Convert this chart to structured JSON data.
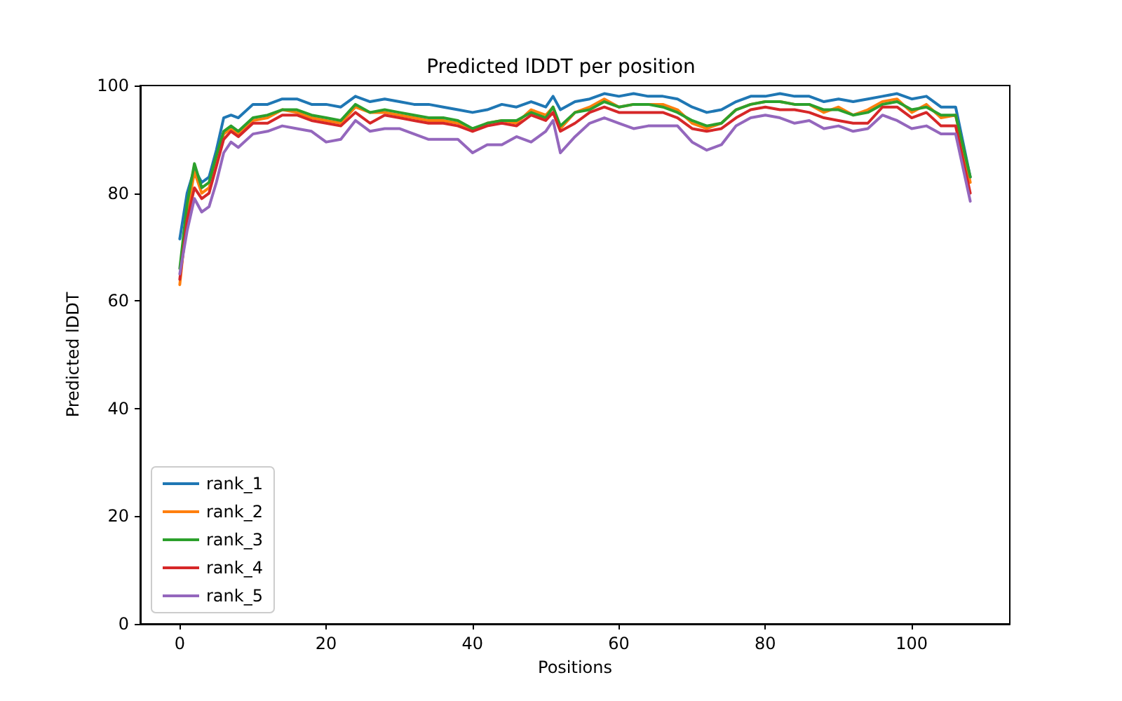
{
  "chart_data": {
    "type": "line",
    "title": "Predicted lDDT per position",
    "xlabel": "Positions",
    "ylabel": "Predicted lDDT",
    "x": [
      0,
      1,
      2,
      3,
      4,
      5,
      6,
      7,
      8,
      10,
      12,
      14,
      16,
      18,
      20,
      22,
      24,
      26,
      28,
      30,
      32,
      34,
      36,
      38,
      40,
      42,
      44,
      46,
      48,
      50,
      51,
      52,
      54,
      56,
      58,
      60,
      62,
      64,
      66,
      68,
      70,
      72,
      74,
      76,
      78,
      80,
      82,
      84,
      86,
      88,
      90,
      92,
      94,
      96,
      98,
      100,
      102,
      104,
      106,
      108
    ],
    "series": [
      {
        "name": "rank_1",
        "color": "#1f77b4",
        "values": [
          71.5,
          80,
          84.5,
          82,
          83,
          88,
          94,
          94.5,
          94,
          96.5,
          96.5,
          97.5,
          97.5,
          96.5,
          96.5,
          96,
          98,
          97,
          97.5,
          97,
          96.5,
          96.5,
          96,
          95.5,
          95,
          95.5,
          96.5,
          96,
          97,
          96,
          98,
          95.5,
          97,
          97.5,
          98.5,
          98,
          98.5,
          98,
          98,
          97.5,
          96,
          95,
          95.5,
          97,
          98,
          98,
          98.5,
          98,
          98,
          97,
          97.5,
          97,
          97.5,
          98,
          98.5,
          97.5,
          98,
          96,
          96,
          83
        ]
      },
      {
        "name": "rank_2",
        "color": "#ff7f0e",
        "values": [
          63,
          76,
          84,
          80,
          81,
          86,
          91,
          92,
          91,
          93.5,
          94,
          95.5,
          95,
          94,
          93.5,
          93,
          96,
          95,
          95,
          94.5,
          94,
          93.5,
          93.5,
          93,
          91.5,
          93,
          93.5,
          93,
          95.5,
          94.5,
          96,
          92,
          95,
          96,
          97.5,
          96,
          96.5,
          96.5,
          96.5,
          95.5,
          93,
          92,
          93,
          95.5,
          96.5,
          97,
          97,
          96.5,
          96.5,
          95,
          96,
          94.5,
          95.5,
          97,
          97.5,
          95,
          96.5,
          94,
          94.5,
          82
        ]
      },
      {
        "name": "rank_3",
        "color": "#2ca02c",
        "values": [
          66,
          78,
          85.5,
          81,
          82,
          87,
          91.5,
          92.5,
          91.5,
          94,
          94.5,
          95.5,
          95.5,
          94.5,
          94,
          93.5,
          96.5,
          95,
          95.5,
          95,
          94.5,
          94,
          94,
          93.5,
          92,
          93,
          93.5,
          93.5,
          95,
          94,
          96,
          92.5,
          95,
          95.5,
          97,
          96,
          96.5,
          96.5,
          96,
          95,
          93.5,
          92.5,
          93,
          95.5,
          96.5,
          97,
          97,
          96.5,
          96.5,
          95.5,
          95.5,
          94.5,
          95,
          96.5,
          97,
          95.5,
          96,
          94.5,
          94.5,
          83
        ]
      },
      {
        "name": "rank_4",
        "color": "#d62728",
        "values": [
          64,
          75,
          81,
          79,
          80,
          85,
          90,
          91.5,
          90.5,
          93,
          93,
          94.5,
          94.5,
          93.5,
          93,
          92.5,
          95,
          93,
          94.5,
          94,
          93.5,
          93,
          93,
          92.5,
          91.5,
          92.5,
          93,
          92.5,
          94.5,
          93.5,
          95,
          91.5,
          93,
          95,
          96,
          95,
          95,
          95,
          95,
          94,
          92,
          91.5,
          92,
          94,
          95.5,
          96,
          95.5,
          95.5,
          95,
          94,
          93.5,
          93,
          93,
          96,
          96,
          94,
          95,
          92.5,
          92.5,
          80
        ]
      },
      {
        "name": "rank_5",
        "color": "#9467bd",
        "values": [
          65,
          73,
          79,
          76.5,
          77.5,
          82,
          87.5,
          89.5,
          88.5,
          91,
          91.5,
          92.5,
          92,
          91.5,
          89.5,
          90,
          93.5,
          91.5,
          92,
          92,
          91,
          90,
          90,
          90,
          87.5,
          89,
          89,
          90.5,
          89.5,
          91.5,
          93.5,
          87.5,
          90.5,
          93,
          94,
          93,
          92,
          92.5,
          92.5,
          92.5,
          89.5,
          88,
          89,
          92.5,
          94,
          94.5,
          94,
          93,
          93.5,
          92,
          92.5,
          91.5,
          92,
          94.5,
          93.5,
          92,
          92.5,
          91,
          91,
          78.5
        ]
      }
    ],
    "xlim": [
      -5.4,
      113.4
    ],
    "xticks": [
      0,
      20,
      40,
      60,
      80,
      100
    ],
    "ylim": [
      0,
      100
    ],
    "yticks": [
      0,
      20,
      40,
      60,
      80,
      100
    ],
    "legend": "bottom left",
    "marker": "none",
    "line_style": "solid"
  }
}
